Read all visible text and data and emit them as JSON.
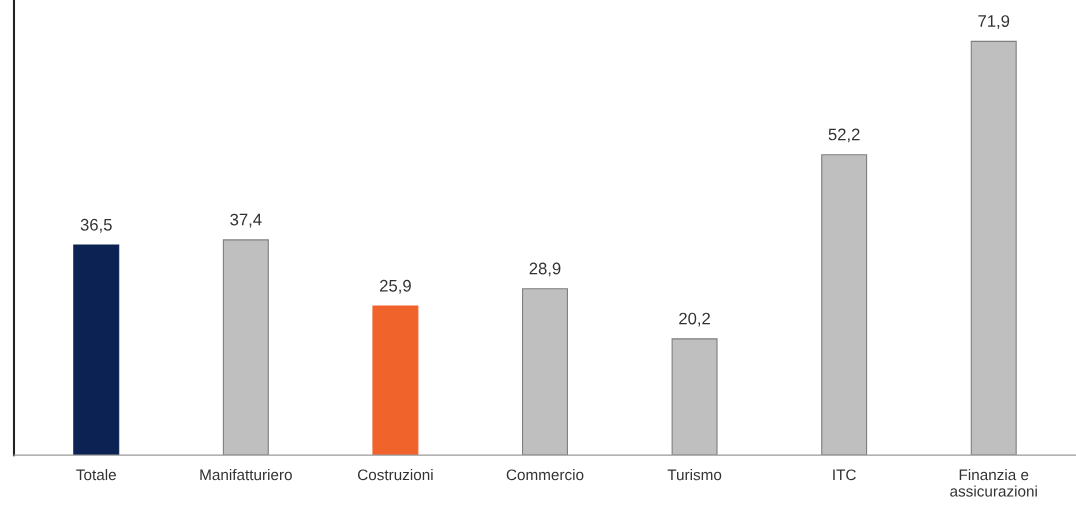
{
  "chart_data": {
    "type": "bar",
    "categories": [
      "Totale",
      "Manifatturiero",
      "Costruzioni",
      "Commercio",
      "Turismo",
      "ITC",
      "Finanzia e\nassicurazioni"
    ],
    "values": [
      36.5,
      37.4,
      25.9,
      28.9,
      20.2,
      52.2,
      71.9
    ],
    "colors": [
      "#0b2252",
      "#bfbfbf",
      "#f0632b",
      "#bfbfbf",
      "#bfbfbf",
      "#bfbfbf",
      "#bfbfbf"
    ],
    "value_labels": [
      "36,5",
      "37,4",
      "25,9",
      "28,9",
      "20,2",
      "52,2",
      "71,9"
    ],
    "grid": false,
    "legend": false,
    "tick_labels": "x"
  }
}
